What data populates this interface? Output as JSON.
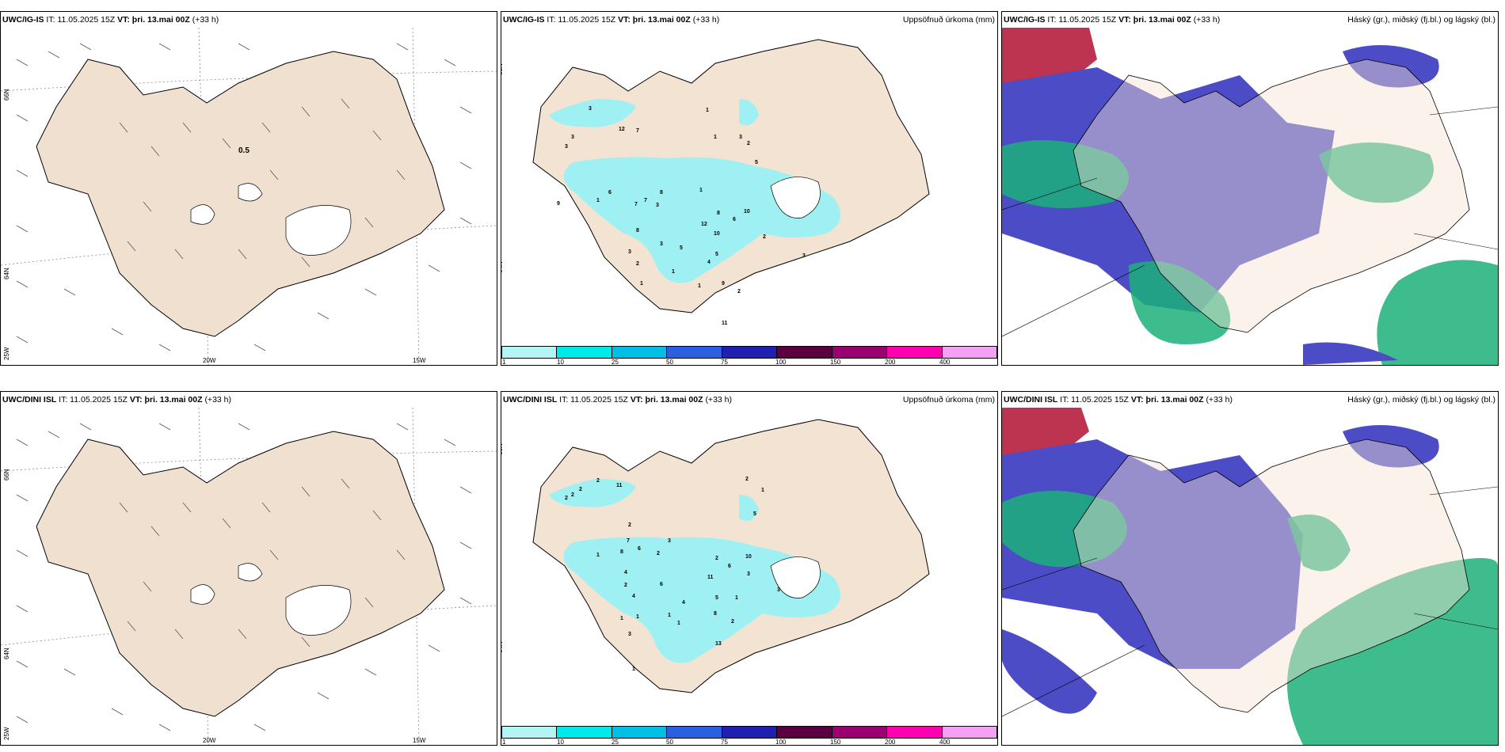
{
  "rows": [
    {
      "model": "UWC/IG-IS",
      "it_label": "IT: 11.05.2025 15Z",
      "vt_label": "VT: þri. 13.mai 00Z",
      "lead": "(+33 h)",
      "precip_title": "Uppsöfnuð úrkoma (mm)",
      "cloud_title": "Háský (gr.), miðský (fj.bl.) og lágský (bl.)",
      "wind_value_label": "0.5",
      "precip_values": [
        "3",
        "12",
        "7",
        "3",
        "3",
        "1",
        "1",
        "3",
        "2",
        "5",
        "1",
        "8",
        "7",
        "7",
        "3",
        "6",
        "9",
        "1",
        "10",
        "8",
        "12",
        "10",
        "6",
        "2",
        "8",
        "3",
        "3",
        "5",
        "2",
        "4",
        "5",
        "1",
        "1",
        "9",
        "2",
        "11",
        "1",
        "3"
      ]
    },
    {
      "model": "UWC/DINI ISL",
      "it_label": "IT: 11.05.2025 15Z",
      "vt_label": "VT: þri. 13.mai 00Z",
      "lead": "(+33 h)",
      "precip_title": "Uppsöfnuð úrkoma (mm)",
      "cloud_title": "Háský (gr.), miðský (fj.bl.) og lágský (bl.)",
      "precip_values": [
        "2",
        "11",
        "2",
        "2",
        "2",
        "2",
        "1",
        "5",
        "2",
        "7",
        "6",
        "1",
        "8",
        "2",
        "3",
        "4",
        "10",
        "6",
        "3",
        "2",
        "2",
        "6",
        "11",
        "3",
        "4",
        "5",
        "1",
        "4",
        "1",
        "1",
        "1",
        "8",
        "2",
        "1",
        "3",
        "13",
        "1"
      ]
    }
  ],
  "axes": {
    "lat_top": "66N",
    "lat_mid": "64N",
    "lon_left": "25W",
    "lon_mid": "20W",
    "lon_right": "15W"
  },
  "legend": {
    "ticks": [
      "1",
      "10",
      "25",
      "50",
      "75",
      "100",
      "150",
      "200",
      "400"
    ],
    "colors": [
      "#b3f5f5",
      "#00e8e8",
      "#00bfe6",
      "#2a5fe0",
      "#2020b0",
      "#5a0040",
      "#9a0070",
      "#ff00b0",
      "#f4a0f4"
    ]
  },
  "colors": {
    "land": "#f3e3d3",
    "wind_land": "#f0e0d0",
    "precip_cyan": "#9ff0f3",
    "cloud_blue": "#4c4cc6",
    "cloud_green": "#1cb07a",
    "cloud_red": "#b01030"
  }
}
